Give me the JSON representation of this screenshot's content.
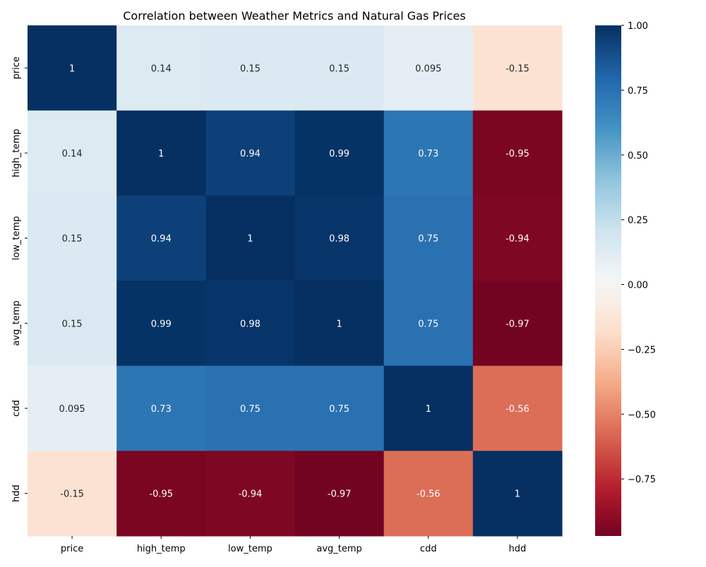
{
  "chart_data": {
    "type": "heatmap",
    "title": "Correlation between Weather Metrics and Natural Gas Prices",
    "xlabel": "",
    "ylabel": "",
    "x_categories": [
      "price",
      "high_temp",
      "low_temp",
      "avg_temp",
      "cdd",
      "hdd"
    ],
    "y_categories": [
      "price",
      "high_temp",
      "low_temp",
      "avg_temp",
      "cdd",
      "hdd"
    ],
    "values": [
      [
        1,
        0.14,
        0.15,
        0.15,
        0.095,
        -0.15
      ],
      [
        0.14,
        1,
        0.94,
        0.99,
        0.73,
        -0.95
      ],
      [
        0.15,
        0.94,
        1,
        0.98,
        0.75,
        -0.94
      ],
      [
        0.15,
        0.99,
        0.98,
        1,
        0.75,
        -0.97
      ],
      [
        0.095,
        0.73,
        0.75,
        0.75,
        1,
        -0.56
      ],
      [
        -0.15,
        -0.95,
        -0.94,
        -0.97,
        -0.56,
        1
      ]
    ],
    "annotations": [
      [
        "1",
        "0.14",
        "0.15",
        "0.15",
        "0.095",
        "-0.15"
      ],
      [
        "0.14",
        "1",
        "0.94",
        "0.99",
        "0.73",
        "-0.95"
      ],
      [
        "0.15",
        "0.94",
        "1",
        "0.98",
        "0.75",
        "-0.94"
      ],
      [
        "0.15",
        "0.99",
        "0.98",
        "1",
        "0.75",
        "-0.97"
      ],
      [
        "0.095",
        "0.73",
        "0.75",
        "0.75",
        "1",
        "-0.56"
      ],
      [
        "-0.15",
        "-0.95",
        "-0.94",
        "-0.97",
        "-0.56",
        "1"
      ]
    ],
    "colorbar": {
      "colormap": "RdBu",
      "range": [
        -0.97,
        1.0
      ],
      "ticks": [
        1.0,
        0.75,
        0.5,
        0.25,
        0.0,
        -0.25,
        -0.5,
        -0.75
      ],
      "tick_labels": [
        "1.00",
        "0.75",
        "0.50",
        "0.25",
        "0.00",
        "−0.25",
        "−0.50",
        "−0.75"
      ]
    },
    "grid": false,
    "legend": "colorbar-right"
  }
}
